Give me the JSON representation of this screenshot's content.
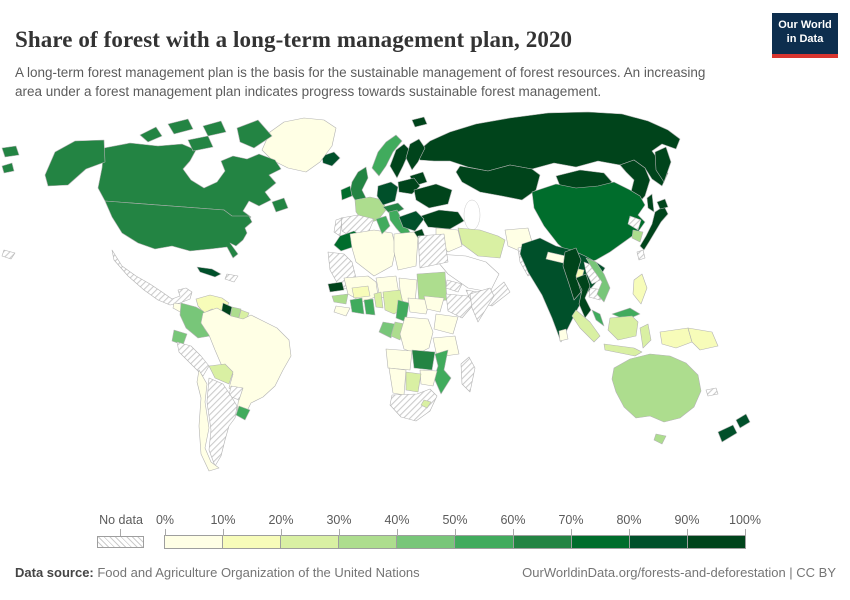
{
  "header": {
    "title": "Share of forest with a long-term management plan, 2020",
    "subtitle": "A long-term forest management plan is the basis for the sustainable management of forest resources. An increasing area under a forest management plan indicates progress towards sustainable forest management.",
    "logo": {
      "line1": "Our World",
      "line2": "in Data",
      "bg_color": "#0d2e4e",
      "underline_color": "#d8352f"
    }
  },
  "legend": {
    "no_data_label": "No data",
    "tick_labels": [
      "0%",
      "10%",
      "20%",
      "30%",
      "40%",
      "50%",
      "60%",
      "70%",
      "80%",
      "90%",
      "100%"
    ]
  },
  "footer": {
    "datasource_label": "Data source:",
    "datasource_value": " Food and Agriculture Organization of the United Nations",
    "attribution": "OurWorldinData.org/forests-and-deforestation | CC BY"
  },
  "chart_data": {
    "type": "heatmap",
    "subtype": "world-choropleth",
    "title": "Share of forest with a long-term management plan, 2020",
    "unit": "%",
    "legend_position": "bottom",
    "bin_ranges": [
      "0-10%",
      "10-20%",
      "20-30%",
      "30-40%",
      "40-50%",
      "50-60%",
      "60-70%",
      "70-80%",
      "80-90%",
      "90-100%"
    ],
    "bin_colors": [
      "#ffffe5",
      "#f7fcb9",
      "#d9f0a3",
      "#addd8e",
      "#78c679",
      "#41ab5d",
      "#238443",
      "#006d2c",
      "#00502a",
      "#00441b"
    ],
    "no_data_hatch_color": "#cccccc",
    "border_color": "#b3b3b3",
    "countries": {
      "russia": "90-100%",
      "svalbard": "90-100%",
      "kazakhstan": "90-100%",
      "mongolia": "90-100%",
      "china": "70-80%",
      "taiwan": "no-data",
      "north-korea": "no-data",
      "south-korea": "30-40%",
      "japan": "90-100%",
      "afghanistan": "0-10%",
      "pakistan": "no-data",
      "iran": "20-30%",
      "iraq-syria": "0-10%",
      "saudi-arabia": "not-reported",
      "yemen-oman": "no-data",
      "india": "80-90%",
      "nepal": "0-10%",
      "bangladesh": "10-20%",
      "sri-lanka": "0-10%",
      "myanmar": "90-100%",
      "thailand": "90-100%",
      "laos": "no-data",
      "cambodia": "no-data",
      "vietnam": "40-50%",
      "malaysia": "50-60%",
      "indonesia": "20-30%",
      "indonesia-papua": "10-20%",
      "papua-new-guinea": "10-20%",
      "philippines": "10-20%",
      "greenland": "0-10%",
      "iceland": "80-90%",
      "canada": "60-70%",
      "usa": "60-70%",
      "mexico": "no-data",
      "guatemala": "0-10%",
      "nicaragua": "20-30%",
      "panama-costa-rica": "no-data",
      "cuba": "80-90%",
      "hispaniola": "no-data",
      "hawaii": "no-data",
      "venezuela": "10-20%",
      "colombia": "40-50%",
      "guyana": "90-100%",
      "suriname": "30-40%",
      "french-guiana": "20-30%",
      "ecuador": "40-50%",
      "peru": "no-data",
      "brazil": "0-10%",
      "bolivia": "20-30%",
      "paraguay": "no-data",
      "uruguay": "50-60%",
      "argentina": "no-data",
      "chile": "0-10%",
      "norway": "50-60%",
      "sweden": "90-100%",
      "finland": "90-100%",
      "baltic-states": "90-100%",
      "united-kingdom": "60-70%",
      "ireland": "70-80%",
      "france": "30-40%",
      "spain": "no-data",
      "portugal": "no-data",
      "germany": "80-90%",
      "alpine-europe": "60-70%",
      "italy": "50-60%",
      "poland": "90-100%",
      "eastern-europe": "90-100%",
      "balkans": "80-90%",
      "greece": "90-100%",
      "turkey": "90-100%",
      "morocco": "70-80%",
      "mauritania": "no-data",
      "algeria": "0-10%",
      "tunisia": "50-60%",
      "libya": "0-10%",
      "egypt": "no-data",
      "mali": "0-10%",
      "niger": "0-10%",
      "chad": "0-10%",
      "sudan": "30-40%",
      "eritrea": "no-data",
      "ethiopia": "no-data",
      "somalia": "no-data",
      "senegal": "90-100%",
      "guinea": "30-40%",
      "sierra-leone-liberia": "0-10%",
      "cote-divoire": "50-60%",
      "ghana": "50-60%",
      "burkina-faso": "10-20%",
      "togo-benin": "20-30%",
      "nigeria": "20-30%",
      "cameroon": "50-60%",
      "central-african-republic": "0-10%",
      "south-sudan": "0-10%",
      "kenya-uganda": "0-10%",
      "gabon": "40-50%",
      "congo": "30-40%",
      "dr-congo": "0-10%",
      "tanzania": "0-10%",
      "angola": "0-10%",
      "zambia": "60-70%",
      "mozambique": "50-60%",
      "zimbabwe": "0-10%",
      "botswana": "20-30%",
      "namibia": "0-10%",
      "south-africa": "no-data",
      "lesotho-eswatini": "20-30%",
      "madagascar": "no-data",
      "australia": "30-40%",
      "new-zealand": "80-90%",
      "new-caledonia": "no-data"
    }
  }
}
